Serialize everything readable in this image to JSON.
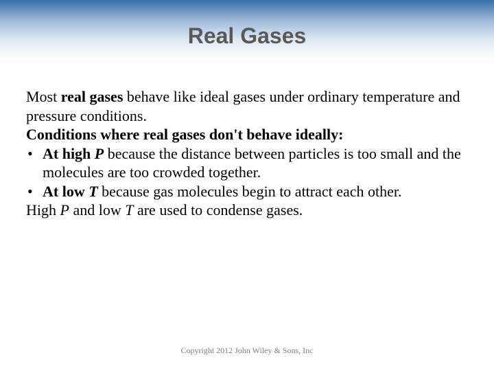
{
  "title": "Real Gases",
  "title_color": "#595959",
  "title_fontsize": 32,
  "body_fontsize": 22,
  "band_gradient": [
    "#3b6fa8",
    "#a8c1dd",
    "#dce6f0",
    "#f5f8fb",
    "#ffffff"
  ],
  "intro_prefix": "Most ",
  "intro_bold": "real gases",
  "intro_rest": " behave like ideal gases under ordinary temperature and pressure conditions.",
  "conditions_heading": "Conditions where real gases don't behave ideally:",
  "bullet1_lead": "At high ",
  "bullet1_var": "P",
  "bullet1_rest": " because the distance between particles is too small and the molecules are too crowded together.",
  "bullet2_lead": "At low ",
  "bullet2_var": "T",
  "bullet2_rest": " because gas molecules begin to attract each other.",
  "closing_pre": "High ",
  "closing_var1": "P",
  "closing_mid": " and low ",
  "closing_var2": "T",
  "closing_post": " are used to condense gases.",
  "footer": "Copyright 2012 John Wiley & Sons, Inc"
}
